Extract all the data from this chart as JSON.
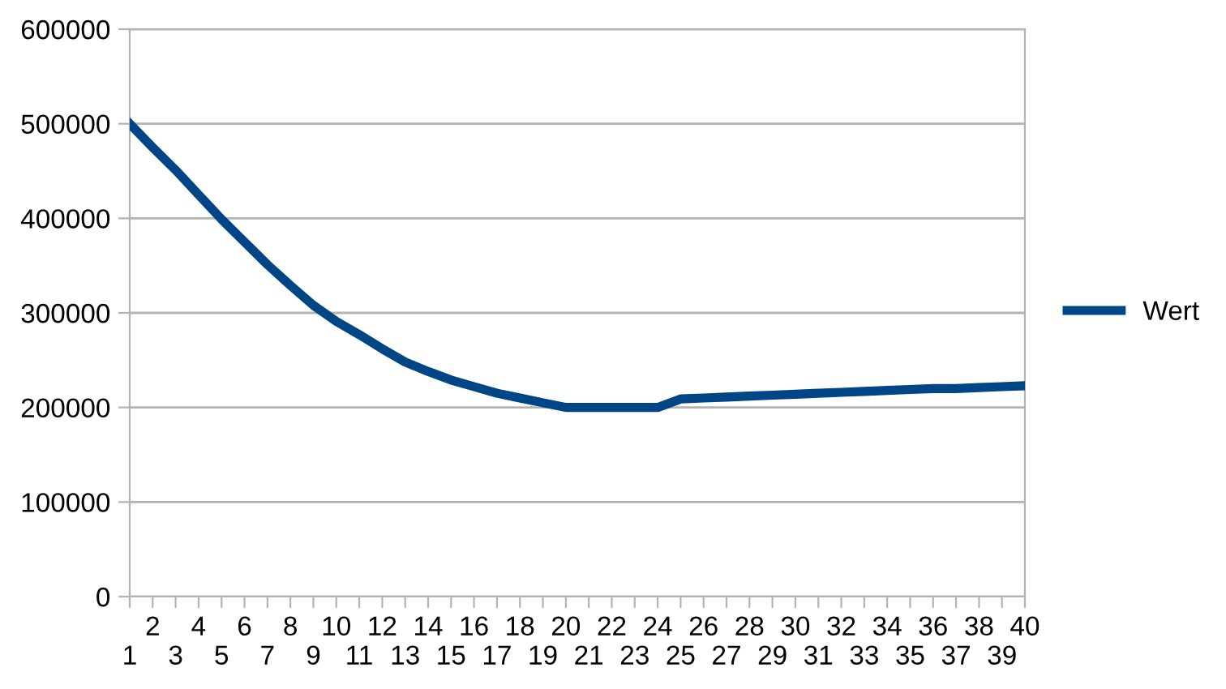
{
  "chart_data": {
    "type": "line",
    "categories": [
      "1",
      "2",
      "3",
      "4",
      "5",
      "6",
      "7",
      "8",
      "9",
      "10",
      "11",
      "12",
      "13",
      "14",
      "15",
      "16",
      "17",
      "18",
      "19",
      "20",
      "21",
      "22",
      "23",
      "24",
      "25",
      "26",
      "27",
      "28",
      "29",
      "30",
      "31",
      "32",
      "33",
      "34",
      "35",
      "36",
      "37",
      "38",
      "39",
      "40"
    ],
    "series": [
      {
        "name": "Wert",
        "color": "#004586",
        "values": [
          500000,
          475000,
          451000,
          425000,
          399000,
          375000,
          351000,
          329000,
          308000,
          291000,
          277000,
          262000,
          248000,
          238000,
          229000,
          222000,
          215000,
          210000,
          205000,
          200000,
          200000,
          200000,
          200000,
          200000,
          209000,
          210000,
          211000,
          212000,
          213000,
          214000,
          215000,
          216000,
          217000,
          218000,
          219000,
          220000,
          220000,
          221000,
          222000,
          223000
        ]
      }
    ],
    "ylim": [
      0,
      600000
    ],
    "yticks": [
      0,
      100000,
      200000,
      300000,
      400000,
      500000,
      600000
    ],
    "grid": "y",
    "legend": "right",
    "marker": "none",
    "line_style": "solid"
  }
}
